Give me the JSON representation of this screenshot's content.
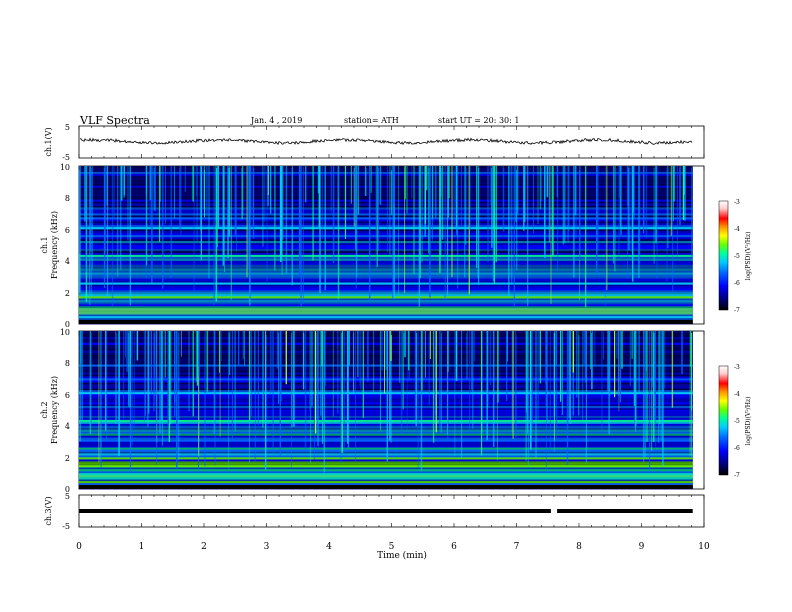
{
  "header": {
    "title": "VLF  Spectra",
    "date": "Jan. 4  , 2019",
    "station": "station= ATH",
    "start": "start  UT  =   20: 30: 1"
  },
  "chart_data": [
    {
      "type": "line",
      "id": "ch1-waveform",
      "ylabel": "ch.1(V)",
      "ylim": [
        -5,
        5
      ],
      "ytick_labels": [
        "5",
        "-5"
      ],
      "description_level_V": 0.2,
      "color": "#000000"
    },
    {
      "type": "heatmap",
      "id": "ch1-spectrogram",
      "ylabel": "ch.1\nFrequency (kHz)",
      "ylabel_lines": [
        "ch.1",
        "Frequency (kHz)"
      ],
      "ylim": [
        0,
        10
      ],
      "ytick_labels": [
        "0",
        "2",
        "4",
        "6",
        "8",
        "10"
      ],
      "colorbar": {
        "label": "log(PSD)(V²/Hz)",
        "range": [
          -7,
          -3
        ],
        "tick_labels": [
          "-3",
          "-4",
          "-5",
          "-6",
          "-7"
        ]
      },
      "colormap": [
        "#000000",
        "#00007a",
        "#0000ff",
        "#0066ff",
        "#00ccff",
        "#00ff99",
        "#66ff00",
        "#ffff00",
        "#ff9900",
        "#ff0000",
        "#ffcccc",
        "#ffffff"
      ]
    },
    {
      "type": "heatmap",
      "id": "ch2-spectrogram",
      "ylabel": "ch.2\nFrequency (kHz)",
      "ylabel_lines": [
        "ch.2",
        "Frequency (kHz)"
      ],
      "ylim": [
        0,
        10
      ],
      "ytick_labels": [
        "0",
        "2",
        "4",
        "6",
        "8",
        "10"
      ],
      "colorbar": {
        "label": "log(PSD)(V²/Hz)",
        "range": [
          -7,
          -3
        ],
        "tick_labels": [
          "-3",
          "-4",
          "-5",
          "-6",
          "-7"
        ]
      },
      "colormap": [
        "#000000",
        "#00007a",
        "#0000ff",
        "#0066ff",
        "#00ccff",
        "#00ff99",
        "#66ff00",
        "#ffff00",
        "#ff9900",
        "#ff0000",
        "#ffcccc",
        "#ffffff"
      ]
    },
    {
      "type": "line",
      "id": "ch3-signal",
      "ylabel": "ch.3(V)",
      "ylim": [
        -5,
        5
      ],
      "ytick_labels": [
        "5",
        "-5"
      ],
      "level_V": 0,
      "gap_minutes": [
        7.55,
        7.65
      ],
      "color": "#000000"
    }
  ],
  "xaxis": {
    "label": "Time  (min)",
    "range": [
      0,
      10
    ],
    "tick_labels": [
      "0",
      "1",
      "2",
      "3",
      "4",
      "5",
      "6",
      "7",
      "8",
      "9",
      "10"
    ],
    "data_end_min": 9.82
  }
}
